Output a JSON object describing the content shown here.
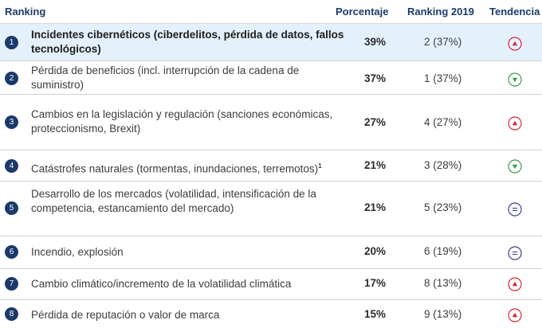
{
  "headers": {
    "ranking": "Ranking",
    "porcentaje": "Porcentaje",
    "ranking_2019": "Ranking 2019",
    "tendencia": "Tendencia"
  },
  "colors": {
    "up": "#d9263a",
    "down": "#3a9a49",
    "same": "#3b3f8f",
    "badge": "#1b3a6b",
    "highlight": "#e4f1fb"
  },
  "rows": [
    {
      "rank": "1",
      "label": "Incidentes cibernéticos (ciberdelitos, pérdida de datos, fallos tecnológicos)",
      "percentage": "39%",
      "ranking_2019": "2 (37%)",
      "trend": "up"
    },
    {
      "rank": "2",
      "label": "Pérdida de beneficios (incl. interrupción de la cadena de suministro)",
      "percentage": "37%",
      "ranking_2019": "1 (37%)",
      "trend": "down"
    },
    {
      "rank": "3",
      "label": "Cambios en la legislación y regulación (sanciones económicas, proteccionismo, Brexit)",
      "percentage": "27%",
      "ranking_2019": "4 (27%)",
      "trend": "up"
    },
    {
      "rank": "4",
      "label": "Catástrofes naturales (tormentas, inundaciones, terremotos)",
      "footnote": "1",
      "percentage": "21%",
      "ranking_2019": "3 (28%)",
      "trend": "down"
    },
    {
      "rank": "5",
      "label": "Desarrollo de los mercados (volatilidad, intensificación de la competencia, estancamiento del mercado)",
      "percentage": "21%",
      "ranking_2019": "5 (23%)",
      "trend": "same"
    },
    {
      "rank": "6",
      "label": "Incendio, explosión",
      "percentage": "20%",
      "ranking_2019": "6 (19%)",
      "trend": "same"
    },
    {
      "rank": "7",
      "label": "Cambio climático/incremento de la volatilidad climática",
      "percentage": "17%",
      "ranking_2019": "8 (13%)",
      "trend": "up"
    },
    {
      "rank": "8",
      "label": "Pérdida de reputación o valor de marca",
      "percentage": "15%",
      "ranking_2019": "9 (13%)",
      "trend": "up"
    }
  ]
}
